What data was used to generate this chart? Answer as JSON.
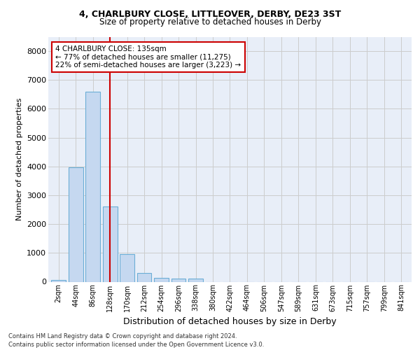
{
  "title1": "4, CHARLBURY CLOSE, LITTLEOVER, DERBY, DE23 3ST",
  "title2": "Size of property relative to detached houses in Derby",
  "xlabel": "Distribution of detached houses by size in Derby",
  "ylabel": "Number of detached properties",
  "bar_categories": [
    "2sqm",
    "44sqm",
    "86sqm",
    "128sqm",
    "170sqm",
    "212sqm",
    "254sqm",
    "296sqm",
    "338sqm",
    "380sqm",
    "422sqm",
    "464sqm",
    "506sqm",
    "547sqm",
    "589sqm",
    "631sqm",
    "673sqm",
    "715sqm",
    "757sqm",
    "799sqm",
    "841sqm"
  ],
  "bar_values": [
    60,
    3980,
    6600,
    2620,
    960,
    310,
    130,
    105,
    100,
    0,
    0,
    0,
    0,
    0,
    0,
    0,
    0,
    0,
    0,
    0,
    0
  ],
  "bar_color": "#c5d8f0",
  "bar_edgecolor": "#6baed6",
  "vline_x": 3.0,
  "vline_color": "#cc0000",
  "annotation_title": "4 CHARLBURY CLOSE: 135sqm",
  "annotation_line1": "← 77% of detached houses are smaller (11,275)",
  "annotation_line2": "22% of semi-detached houses are larger (3,223) →",
  "annotation_box_color": "#cc0000",
  "ylim": [
    0,
    8500
  ],
  "yticks": [
    0,
    1000,
    2000,
    3000,
    4000,
    5000,
    6000,
    7000,
    8000
  ],
  "grid_color": "#cccccc",
  "background_color": "#e8eef8",
  "footer1": "Contains HM Land Registry data © Crown copyright and database right 2024.",
  "footer2": "Contains public sector information licensed under the Open Government Licence v3.0."
}
